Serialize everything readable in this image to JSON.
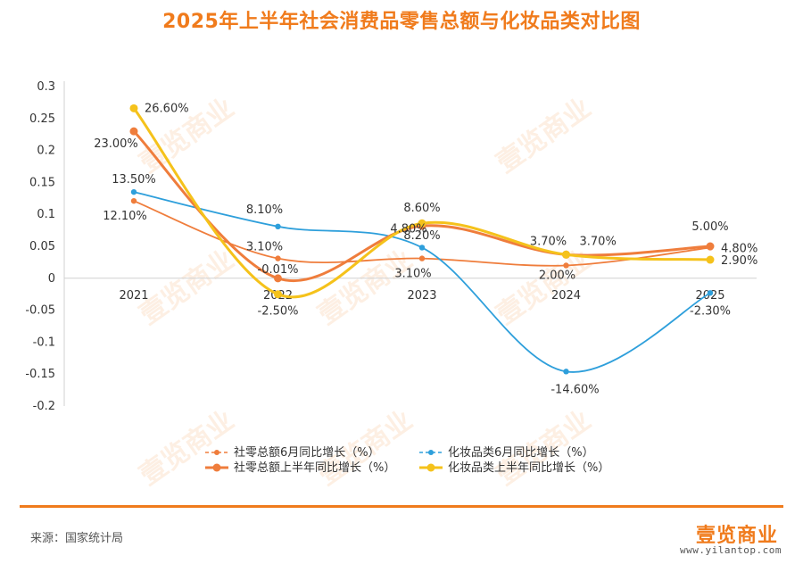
{
  "chart_data": {
    "type": "line",
    "title": "2025年上半年社会消费品零售总额与化妆品类对比图",
    "categories": [
      "2021",
      "2022",
      "2023",
      "2024",
      "2025"
    ],
    "ylim": [
      -0.2,
      0.3
    ],
    "yticks": [
      "0.3",
      "0.25",
      "0.2",
      "0.15",
      "0.1",
      "0.05",
      "0",
      "-0.05",
      "-0.1",
      "-0.15",
      "-0.2"
    ],
    "yvalues": [
      0.3,
      0.25,
      0.2,
      0.15,
      0.1,
      0.05,
      0,
      -0.05,
      -0.1,
      -0.15,
      -0.2
    ],
    "grid": false,
    "legend_position": "bottom",
    "series": [
      {
        "name": "社零总额6月同比增长（%）",
        "color": "#ef7d3c",
        "style": "thin",
        "values": [
          0.121,
          0.031,
          0.031,
          0.02,
          0.048
        ],
        "labels": [
          "12.10%",
          "3.10%",
          "3.10%",
          "2.00%",
          "4.80%"
        ]
      },
      {
        "name": "化妆品类6月同比增长（%）",
        "color": "#2e9fdb",
        "style": "thin",
        "values": [
          0.135,
          0.081,
          0.048,
          -0.146,
          -0.023
        ],
        "labels": [
          "13.50%",
          "8.10%",
          "4.80%",
          "-14.60%",
          "-2.30%"
        ]
      },
      {
        "name": "社零总额上半年同比增长（%）",
        "color": "#ef7d3c",
        "style": "thick",
        "values": [
          0.23,
          -0.0001,
          0.082,
          0.037,
          0.05
        ],
        "labels": [
          "23.00%",
          "-0.01%",
          "8.20%",
          "3.70%",
          "5.00%"
        ]
      },
      {
        "name": "化妆品类上半年同比增长（%）",
        "color": "#f5c21b",
        "style": "thick",
        "values": [
          0.266,
          -0.025,
          0.086,
          0.037,
          0.029
        ],
        "labels": [
          "26.60%",
          "-2.50%",
          "8.60%",
          "3.70%",
          "2.90%"
        ]
      }
    ]
  },
  "source": "来源：国家统计局",
  "brand": {
    "logo": "壹览商业",
    "url": "www.yilantop.com"
  },
  "watermark": "壹览商业"
}
